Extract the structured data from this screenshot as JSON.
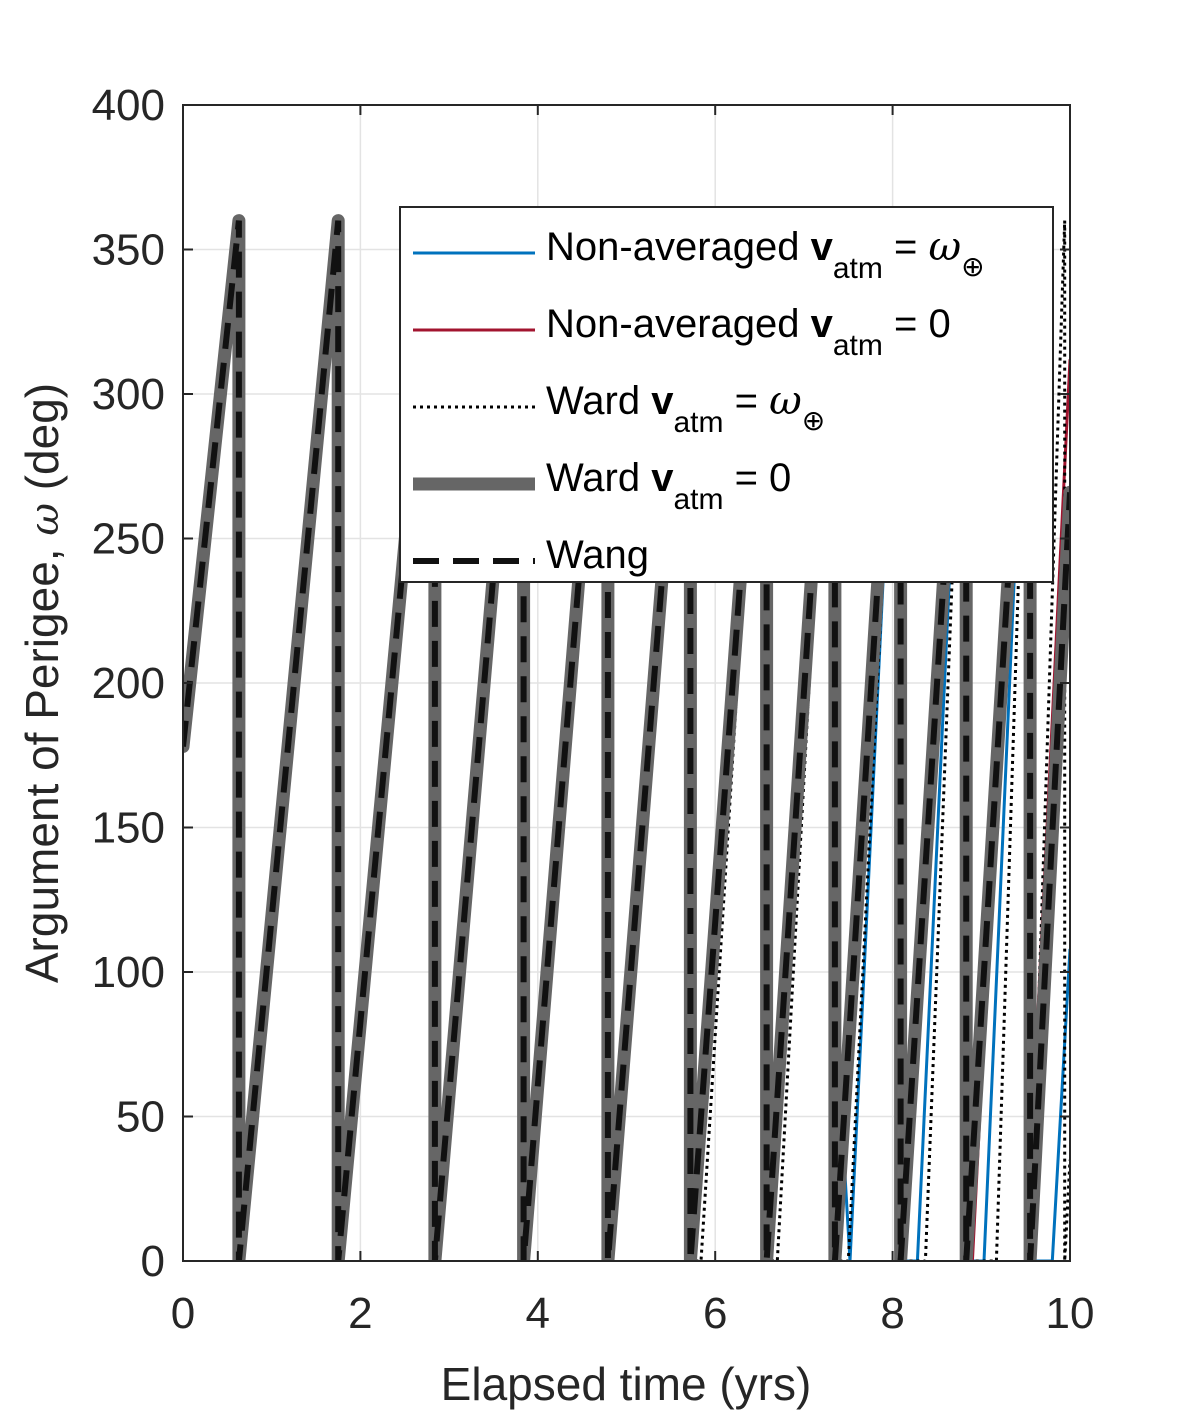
{
  "chart_data": {
    "type": "line",
    "xlabel": "Elapsed time (yrs)",
    "ylabel_prefix": "Argument of Perigee, ",
    "ylabel_symbol": "ω",
    "ylabel_suffix": " (deg)",
    "xlim": [
      0,
      10
    ],
    "ylim": [
      0,
      400
    ],
    "xticks": [
      0,
      2,
      4,
      6,
      8,
      10
    ],
    "yticks": [
      0,
      50,
      100,
      150,
      200,
      250,
      300,
      350,
      400
    ],
    "grid": true,
    "legend_position": "top-right",
    "legend": [
      {
        "text": "Non-averaged ",
        "bold": "v",
        "sub": "atm",
        "eq": " = ",
        "omega": "ω",
        "earth": "⊕"
      },
      {
        "text": "Non-averaged ",
        "bold": "v",
        "sub": "atm",
        "eq": " = 0",
        "omega": "",
        "earth": ""
      },
      {
        "text": "Ward ",
        "bold": "v",
        "sub": "atm",
        "eq": " = ",
        "omega": "ω",
        "earth": "⊕"
      },
      {
        "text": "Ward ",
        "bold": "v",
        "sub": "atm",
        "eq": " = 0",
        "omega": "",
        "earth": ""
      },
      {
        "text": "Wang",
        "bold": "",
        "sub": "",
        "eq": "",
        "omega": "",
        "earth": ""
      }
    ],
    "series": [
      {
        "name": "Non-averaged v_atm = ω⊕",
        "color": "#0072BD",
        "style": "solid",
        "x": [
          0,
          0.63,
          0.63,
          1.75,
          1.75,
          2.84,
          2.84,
          3.84,
          3.84,
          4.79,
          4.79,
          5.72,
          5.72,
          6.58,
          6.58,
          7.35,
          7.35,
          7.52,
          7.52,
          8.09,
          8.09,
          8.28,
          8.28,
          8.83,
          8.83,
          9.03,
          9.03,
          9.55,
          9.55,
          9.8,
          9.8,
          10.0
        ],
        "y": [
          178,
          360,
          0,
          360,
          0,
          360,
          0,
          360,
          0,
          360,
          0,
          360,
          0,
          360,
          0,
          360,
          90,
          0,
          0,
          360,
          0,
          0,
          0,
          360,
          0,
          0,
          0,
          360,
          0,
          0,
          0,
          108
        ]
      },
      {
        "name": "Non-averaged v_atm = 0",
        "color": "#A2142F",
        "style": "solid",
        "x": [
          0,
          0.63,
          0.63,
          1.75,
          1.75,
          2.84,
          2.84,
          3.84,
          3.84,
          4.79,
          4.79,
          5.72,
          5.72,
          6.58,
          6.58,
          7.35,
          7.35,
          8.09,
          8.09,
          8.85,
          8.85,
          8.9,
          8.9,
          9.5,
          9.5,
          10.0
        ],
        "y": [
          178,
          360,
          0,
          360,
          0,
          360,
          0,
          360,
          0,
          360,
          0,
          360,
          0,
          360,
          0,
          360,
          0,
          360,
          0,
          355,
          100,
          0,
          0,
          360,
          0,
          312
        ]
      },
      {
        "name": "Ward v_atm = ω⊕",
        "color": "#000000",
        "style": "dotted",
        "x": [
          0,
          0.63,
          0.63,
          1.75,
          1.75,
          2.84,
          2.84,
          3.84,
          3.84,
          4.79,
          4.79,
          5.72,
          5.72,
          5.84,
          5.84,
          6.58,
          6.58,
          6.7,
          6.7,
          7.35,
          7.35,
          7.5,
          7.5,
          8.09,
          8.09,
          8.37,
          8.37,
          8.83,
          8.83,
          9.17,
          9.17,
          9.55,
          9.55,
          9.94,
          9.94,
          10.0
        ],
        "y": [
          178,
          360,
          0,
          360,
          0,
          360,
          0,
          360,
          0,
          360,
          0,
          360,
          0,
          0,
          0,
          360,
          0,
          0,
          0,
          360,
          0,
          0,
          0,
          360,
          0,
          0,
          0,
          360,
          0,
          0,
          0,
          360,
          0,
          360,
          0,
          35
        ]
      },
      {
        "name": "Ward v_atm = 0",
        "color": "#666666",
        "style": "thick",
        "x": [
          0,
          0.63,
          0.63,
          1.75,
          1.75,
          2.84,
          2.84,
          3.84,
          3.84,
          4.79,
          4.79,
          5.72,
          5.72,
          6.58,
          6.58,
          7.35,
          7.35,
          8.09,
          8.09,
          8.83,
          8.83,
          9.55,
          9.55,
          10.0
        ],
        "y": [
          178,
          360,
          0,
          360,
          0,
          360,
          0,
          360,
          0,
          360,
          0,
          360,
          0,
          360,
          0,
          360,
          0,
          360,
          0,
          360,
          0,
          360,
          0,
          266
        ]
      },
      {
        "name": "Wang",
        "color": "#111111",
        "style": "dashed",
        "x": [
          0,
          0.63,
          0.63,
          1.75,
          1.75,
          2.84,
          2.84,
          3.84,
          3.84,
          4.79,
          4.79,
          5.72,
          5.72,
          6.58,
          6.58,
          7.35,
          7.35,
          8.09,
          8.09,
          8.83,
          8.83,
          9.55,
          9.55,
          10.0
        ],
        "y": [
          178,
          360,
          0,
          360,
          0,
          360,
          0,
          360,
          0,
          360,
          0,
          360,
          0,
          360,
          0,
          360,
          0,
          360,
          0,
          360,
          0,
          360,
          0,
          266
        ]
      }
    ]
  }
}
